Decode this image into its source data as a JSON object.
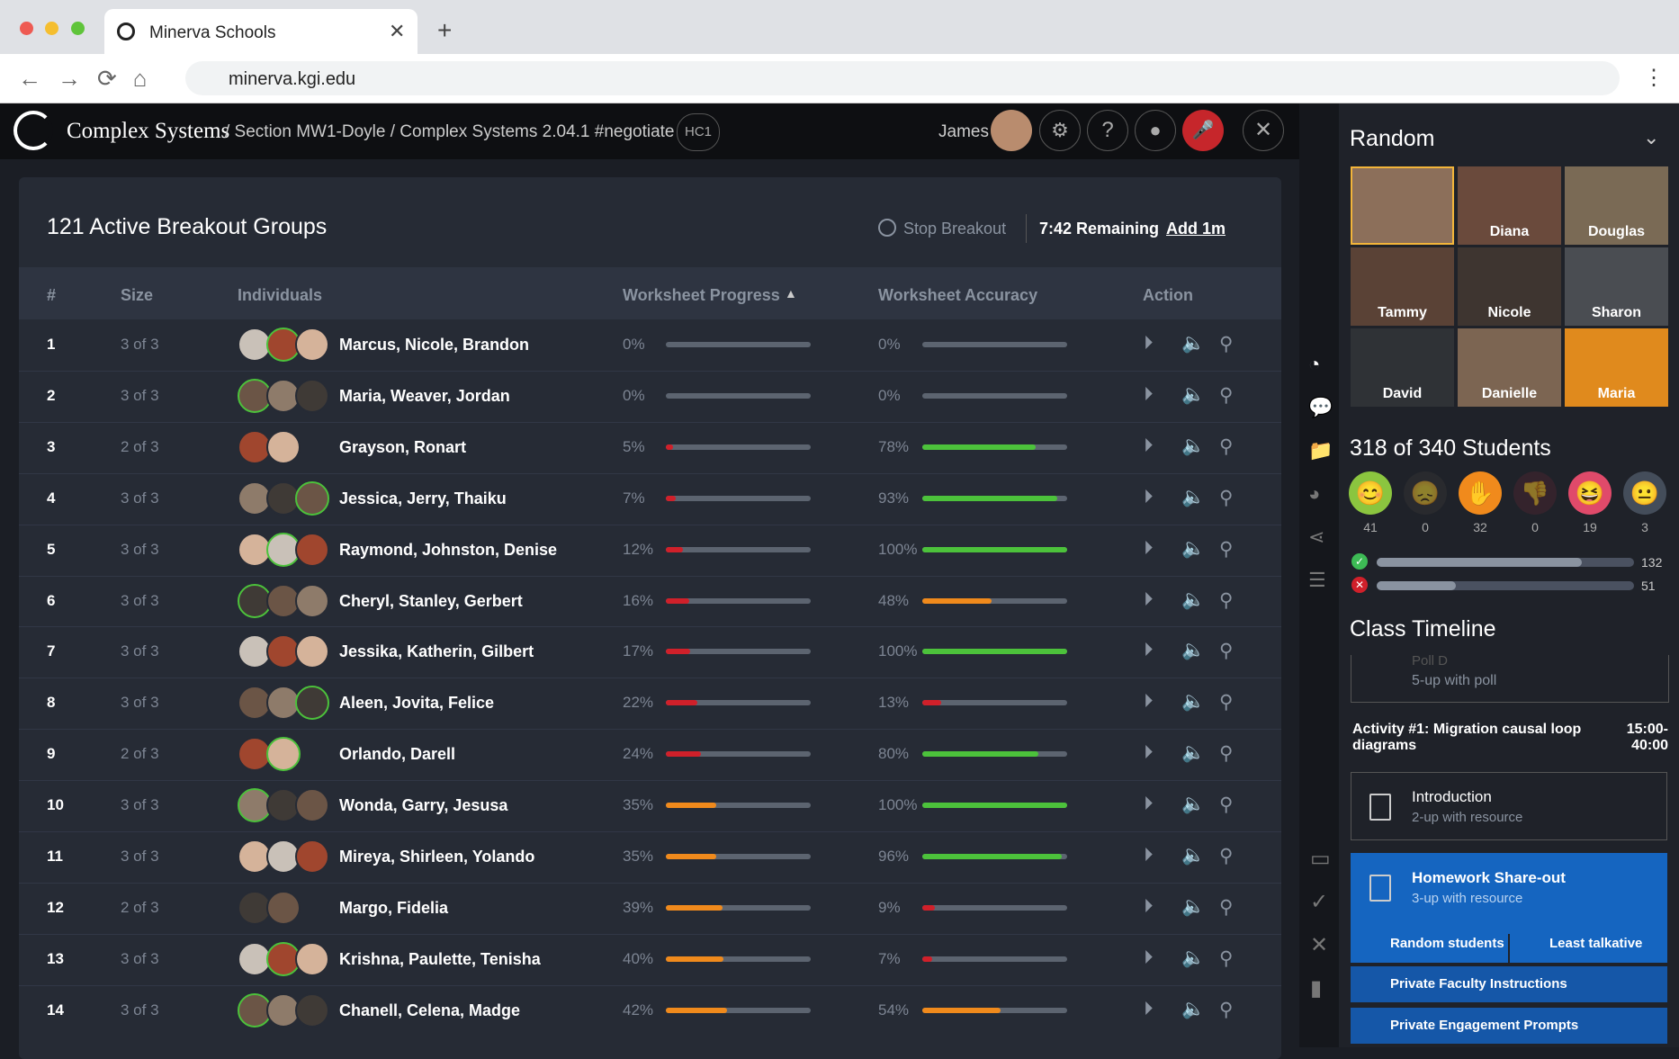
{
  "browser": {
    "tab_title": "Minerva Schools",
    "url": "minerva.kgi.edu"
  },
  "header": {
    "app": "Complex Systems",
    "breadcrumb": "/ Section MW1-Doyle / Complex Systems 2.04.1 #negotiate",
    "badge": "HC1",
    "user": "James"
  },
  "breakout": {
    "title": "121 Active Breakout Groups",
    "stop": "Stop Breakout",
    "remaining": "7:42 Remaining",
    "add": "Add 1m",
    "columns": [
      "#",
      "Size",
      "Individuals",
      "Worksheet Progress",
      "Worksheet Accuracy",
      "Action"
    ],
    "rows": [
      {
        "n": "1",
        "size": "3 of 3",
        "names": "Marcus, Nicole, Brandon",
        "progress": "0%",
        "accuracy": "0%"
      },
      {
        "n": "2",
        "size": "3 of 3",
        "names": "Maria, Weaver, Jordan",
        "progress": "0%",
        "accuracy": "0%"
      },
      {
        "n": "3",
        "size": "2 of 3",
        "names": "Grayson, Ronart",
        "progress": "5%",
        "accuracy": "78%"
      },
      {
        "n": "4",
        "size": "3 of 3",
        "names": "Jessica, Jerry, Thaiku",
        "progress": "7%",
        "accuracy": "93%"
      },
      {
        "n": "5",
        "size": "3 of 3",
        "names": "Raymond, Johnston, Denise",
        "progress": "12%",
        "accuracy": "100%"
      },
      {
        "n": "6",
        "size": "3 of 3",
        "names": "Cheryl, Stanley, Gerbert",
        "progress": "16%",
        "accuracy": "48%"
      },
      {
        "n": "7",
        "size": "3 of 3",
        "names": "Jessika, Katherin, Gilbert",
        "progress": "17%",
        "accuracy": "100%"
      },
      {
        "n": "8",
        "size": "3 of 3",
        "names": "Aleen, Jovita, Felice",
        "progress": "22%",
        "accuracy": "13%"
      },
      {
        "n": "9",
        "size": "2 of 3",
        "names": "Orlando, Darell",
        "progress": "24%",
        "accuracy": "80%"
      },
      {
        "n": "10",
        "size": "3 of 3",
        "names": "Wonda, Garry, Jesusa",
        "progress": "35%",
        "accuracy": "100%"
      },
      {
        "n": "11",
        "size": "3 of 3",
        "names": "Mireya, Shirleen, Yolando",
        "progress": "35%",
        "accuracy": "96%"
      },
      {
        "n": "12",
        "size": "2 of 3",
        "names": "Margo, Fidelia",
        "progress": "39%",
        "accuracy": "9%"
      },
      {
        "n": "13",
        "size": "3 of 3",
        "names": "Krishna, Paulette, Tenisha",
        "progress": "40%",
        "accuracy": "7%"
      },
      {
        "n": "14",
        "size": "3 of 3",
        "names": "Chanell, Celena, Madge",
        "progress": "42%",
        "accuracy": "54%"
      }
    ]
  },
  "sidebar": {
    "random_title": "Random",
    "videos": [
      "Diana",
      "Douglas",
      "Tammy",
      "Nicole",
      "Sharon",
      "David",
      "Danielle",
      "Maria"
    ],
    "students_title": "318 of 340 Students",
    "reactions": [
      41,
      0,
      32,
      0,
      19,
      3
    ],
    "answers": [
      132,
      51
    ],
    "timeline_title": "Class Timeline",
    "poll": {
      "title": "Poll D",
      "subtitle": "5-up with poll"
    },
    "activity": {
      "title": "Activity #1: Migration causal loop diagrams",
      "time": "15:00-40:00"
    },
    "items": [
      {
        "title": "Introduction",
        "subtitle": "2-up with resource"
      },
      {
        "title": "Homework Share-out",
        "subtitle": "3-up with resource"
      }
    ],
    "buttons": [
      "Random students",
      "Least talkative"
    ],
    "links": [
      "Private Faculty Instructions",
      "Private Engagement Prompts"
    ]
  }
}
